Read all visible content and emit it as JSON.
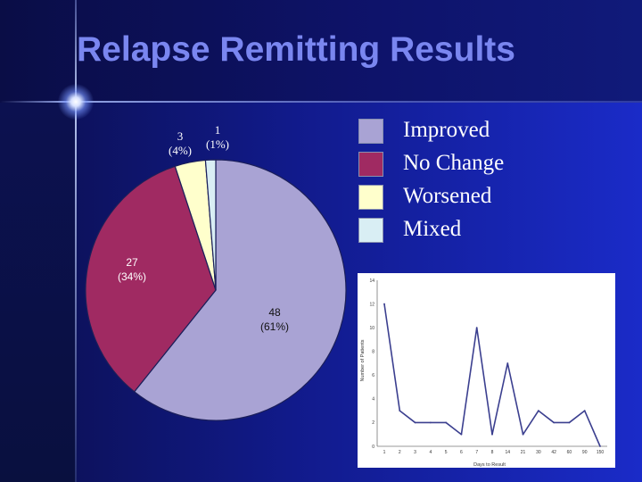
{
  "slide": {
    "title": "Relapse Remitting Results"
  },
  "colors": {
    "improved": "#a9a3d4",
    "no_change": "#a02a62",
    "worsened": "#ffffcc",
    "mixed": "#d9eef4",
    "line": "#3b3f8f",
    "title": "#7a86f0"
  },
  "chart_data": [
    {
      "type": "pie",
      "title": "",
      "slices": [
        {
          "name": "Improved",
          "value": 48,
          "label_value": "48",
          "label_pct": "(61%)",
          "color": "#a9a3d4"
        },
        {
          "name": "No Change",
          "value": 27,
          "label_value": "27",
          "label_pct": "(34%)",
          "color": "#a02a62"
        },
        {
          "name": "Worsened",
          "value": 3,
          "label_value": "3",
          "label_pct": "(4%)",
          "color": "#ffffcc"
        },
        {
          "name": "Mixed",
          "value": 1,
          "label_value": "1",
          "label_pct": "(1%)",
          "color": "#d9eef4"
        }
      ],
      "legend": {
        "placement": "right",
        "items": [
          "Improved",
          "No Change",
          "Worsened",
          "Mixed"
        ]
      }
    },
    {
      "type": "line",
      "title": "",
      "xlabel": "Days to Result",
      "ylabel": "Number of Patients",
      "categories": [
        "1",
        "2",
        "3",
        "4",
        "5",
        "6",
        "7",
        "8",
        "14",
        "21",
        "30",
        "42",
        "60",
        "90",
        "150"
      ],
      "series": [
        {
          "values": [
            12,
            3,
            2,
            2,
            2,
            1,
            10,
            1,
            7,
            1,
            3,
            2,
            2,
            3,
            0
          ]
        }
      ],
      "ylim": [
        0,
        14
      ],
      "yticks": [
        "0",
        "2",
        "4",
        "6",
        "8",
        "10",
        "12",
        "14"
      ],
      "grid": false
    }
  ]
}
